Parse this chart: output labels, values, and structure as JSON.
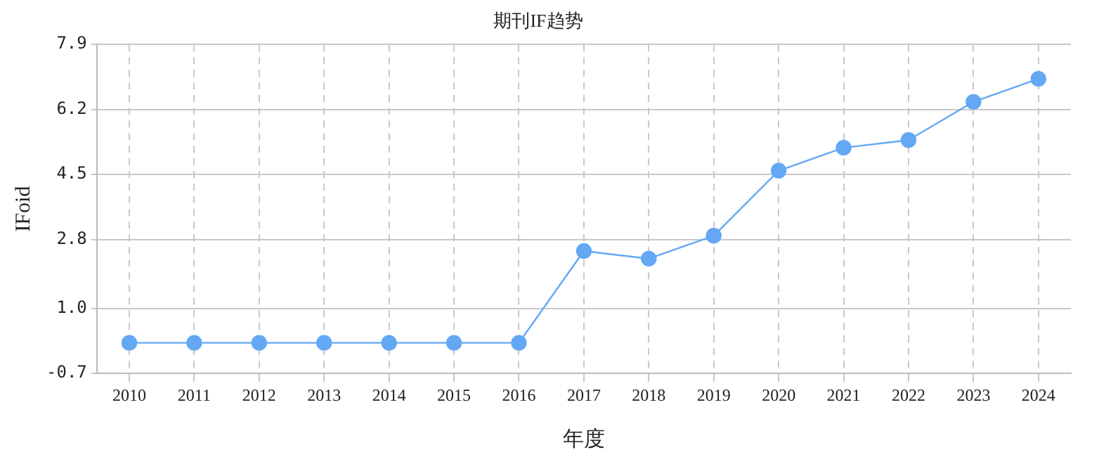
{
  "chart_data": {
    "type": "line",
    "title": "期刊IF趋势",
    "xlabel": "年度",
    "ylabel": "IFoid",
    "categories": [
      "2010",
      "2011",
      "2012",
      "2013",
      "2014",
      "2015",
      "2016",
      "2017",
      "2018",
      "2019",
      "2020",
      "2021",
      "2022",
      "2023",
      "2024"
    ],
    "series": [
      {
        "color": "#64a8f4",
        "values": [
          0.1,
          0.1,
          0.1,
          0.1,
          0.1,
          0.1,
          0.1,
          2.5,
          2.3,
          2.9,
          4.6,
          5.2,
          5.4,
          6.4,
          7.0
        ]
      }
    ],
    "ylim": [
      -0.7,
      7.9
    ],
    "yticks": [
      -0.7,
      {
        "value": 1,
        "label": "1.0"
      },
      2.8,
      4.5,
      6.2,
      7.9
    ],
    "grid": true,
    "marker": "circle",
    "line_style": "solid",
    "legend": false
  }
}
